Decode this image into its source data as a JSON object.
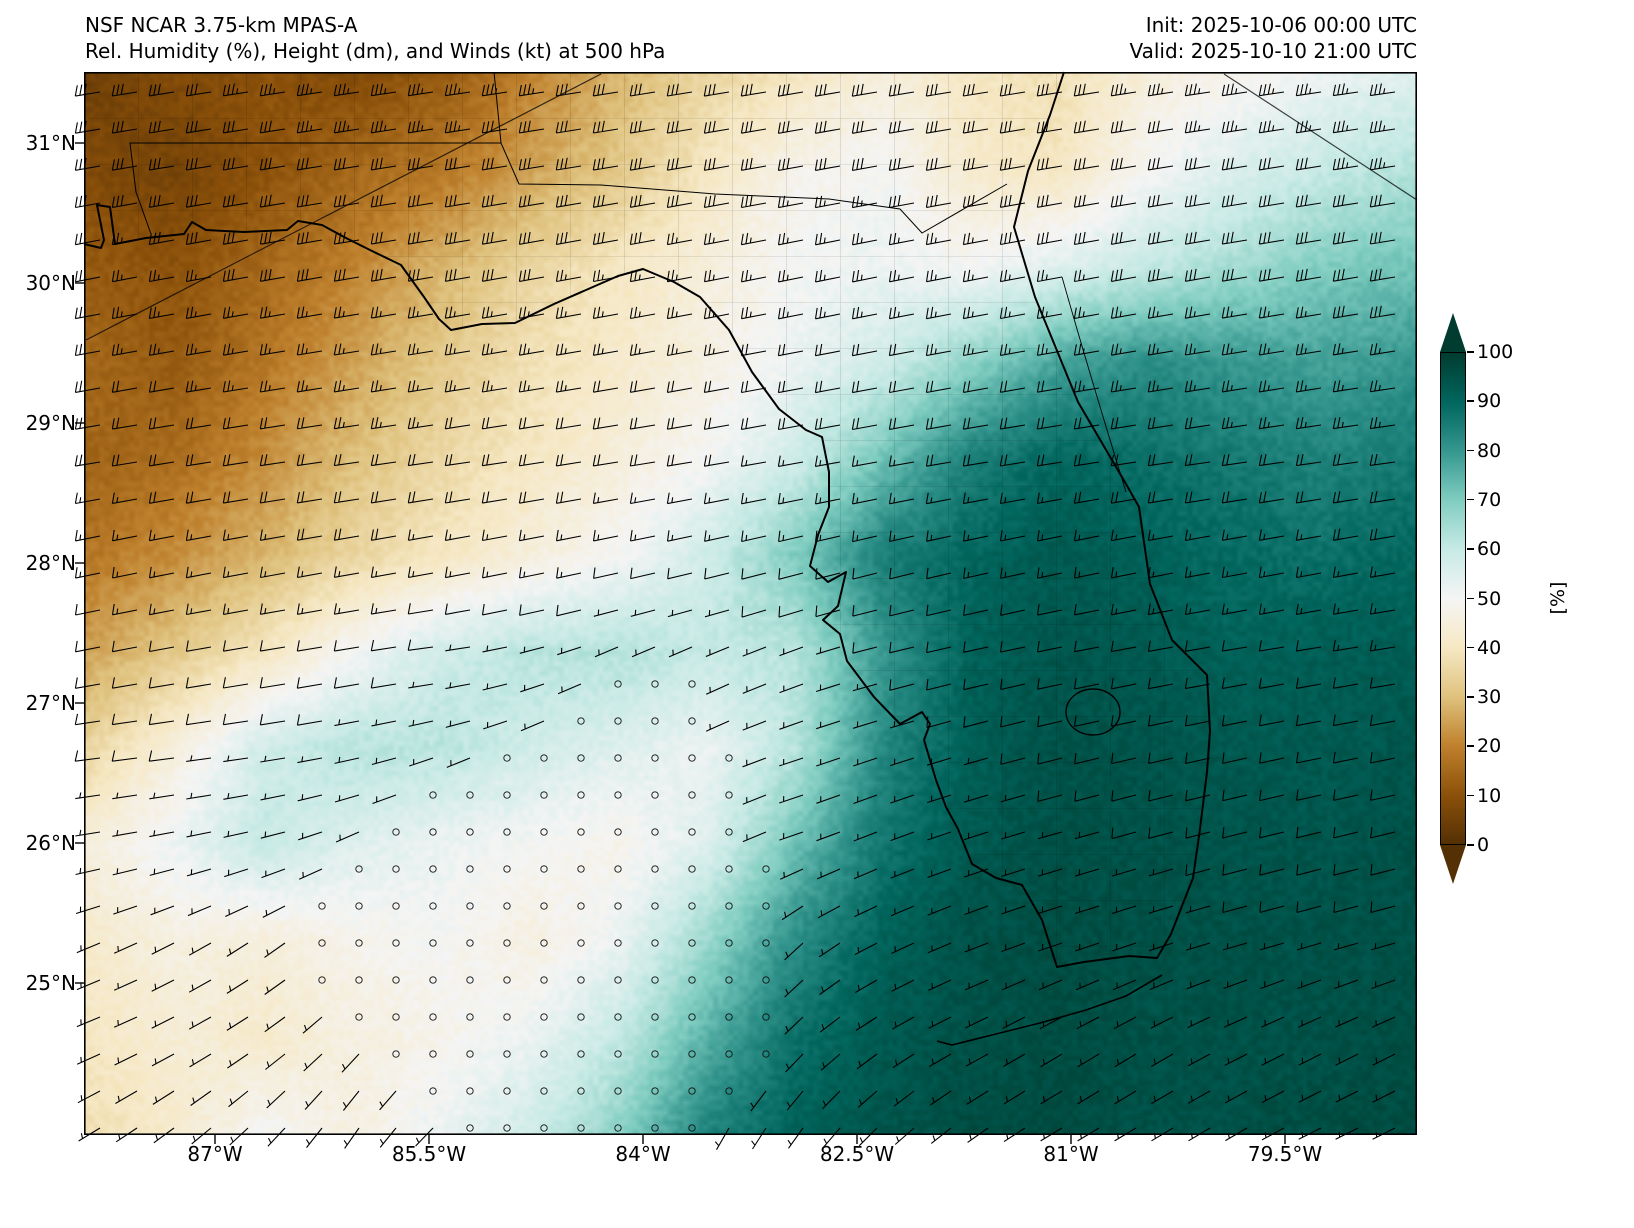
{
  "header": {
    "model": "NSF NCAR 3.75-km MPAS-A",
    "subtitle": "Rel. Humidity (%), Height (dm), and Winds (kt) at 500 hPa",
    "init": "Init: 2025-10-06 00:00 UTC",
    "valid": "Valid: 2025-10-10 21:00 UTC"
  },
  "axes": {
    "lat_labels": [
      "31°N",
      "30°N",
      "29°N",
      "28°N",
      "27°N",
      "26°N",
      "25°N"
    ],
    "lon_labels": [
      "87°W",
      "85.5°W",
      "84°W",
      "82.5°W",
      "81°W",
      "79.5°W"
    ]
  },
  "colorbar": {
    "ticks": [
      "100",
      "90",
      "80",
      "70",
      "60",
      "50",
      "40",
      "30",
      "20",
      "10",
      "0"
    ],
    "label": "[%]"
  },
  "chart_data": {
    "type": "heatmap",
    "title": "NSF NCAR 3.75-km MPAS-A  Rel. Humidity (%), Height (dm), and Winds (kt) at 500 hPa",
    "field": "relative_humidity_500hPa_percent",
    "lon_range": [
      -87.92,
      -78.55
    ],
    "lat_range": [
      23.92,
      31.51
    ],
    "value_range": [
      0,
      100
    ],
    "colormap": [
      "#543005",
      "#8c510a",
      "#bf812d",
      "#dfc27d",
      "#f6e8c3",
      "#f5f5f5",
      "#c7eae5",
      "#80cdc1",
      "#35978f",
      "#01665e",
      "#003c30"
    ],
    "humidity_grid": [
      [
        5,
        8,
        10,
        8,
        12,
        20,
        28,
        35,
        40,
        45,
        40,
        38,
        45,
        48,
        52,
        55
      ],
      [
        8,
        6,
        10,
        15,
        18,
        25,
        32,
        40,
        48,
        50,
        42,
        40,
        50,
        56,
        60,
        63
      ],
      [
        12,
        10,
        15,
        20,
        28,
        35,
        40,
        45,
        50,
        52,
        50,
        55,
        60,
        65,
        70,
        72
      ],
      [
        15,
        12,
        18,
        25,
        32,
        38,
        42,
        46,
        52,
        58,
        68,
        78,
        82,
        80,
        78,
        80
      ],
      [
        14,
        16,
        22,
        30,
        36,
        40,
        45,
        50,
        58,
        72,
        85,
        90,
        88,
        86,
        84,
        86
      ],
      [
        18,
        22,
        28,
        35,
        40,
        45,
        50,
        58,
        70,
        85,
        90,
        93,
        91,
        89,
        88,
        90
      ],
      [
        25,
        32,
        40,
        50,
        58,
        62,
        63,
        60,
        62,
        80,
        91,
        94,
        93,
        91,
        92,
        92
      ],
      [
        35,
        45,
        58,
        62,
        62,
        58,
        55,
        52,
        62,
        83,
        92,
        95,
        94,
        93,
        93,
        94
      ],
      [
        45,
        52,
        60,
        55,
        52,
        50,
        48,
        55,
        72,
        87,
        93,
        95,
        95,
        94,
        94,
        95
      ],
      [
        42,
        46,
        45,
        48,
        50,
        46,
        52,
        66,
        82,
        91,
        95,
        96,
        95,
        95,
        95,
        95
      ],
      [
        40,
        44,
        42,
        46,
        48,
        52,
        60,
        75,
        88,
        93,
        95,
        96,
        95,
        95,
        95,
        96
      ],
      [
        38,
        42,
        50,
        46,
        52,
        58,
        68,
        84,
        91,
        94,
        96,
        96,
        95,
        95,
        96,
        96
      ]
    ],
    "wind_units": "kt",
    "wind_u": [
      [
        30,
        32,
        33,
        34,
        34,
        33,
        32,
        31,
        30,
        30,
        31,
        32,
        33,
        34,
        34,
        35
      ],
      [
        28,
        30,
        31,
        32,
        32,
        31,
        30,
        29,
        28,
        28,
        29,
        30,
        31,
        32,
        32,
        33
      ],
      [
        25,
        27,
        28,
        29,
        29,
        28,
        27,
        26,
        25,
        25,
        26,
        27,
        28,
        29,
        29,
        30
      ],
      [
        22,
        23,
        24,
        25,
        25,
        24,
        23,
        22,
        21,
        21,
        22,
        23,
        24,
        25,
        25,
        26
      ],
      [
        18,
        19,
        20,
        21,
        21,
        20,
        19,
        18,
        17,
        17,
        18,
        19,
        20,
        21,
        21,
        22
      ],
      [
        14,
        15,
        16,
        17,
        16,
        15,
        14,
        13,
        12,
        12,
        13,
        14,
        15,
        16,
        16,
        17
      ],
      [
        10,
        11,
        12,
        12,
        8,
        4,
        2,
        2,
        5,
        8,
        9,
        10,
        11,
        12,
        12,
        13
      ],
      [
        8,
        8,
        7,
        5,
        3,
        2,
        1,
        2,
        3,
        6,
        7,
        8,
        9,
        9,
        10,
        10
      ],
      [
        6,
        5,
        4,
        2,
        1,
        0,
        0,
        1,
        3,
        5,
        6,
        7,
        7,
        8,
        8,
        8
      ],
      [
        5,
        4,
        3,
        1,
        0,
        0,
        0,
        1,
        2,
        4,
        5,
        6,
        6,
        7,
        7,
        7
      ],
      [
        5,
        4,
        3,
        2,
        1,
        0,
        0,
        1,
        2,
        3,
        4,
        5,
        5,
        6,
        6,
        6
      ],
      [
        5,
        4,
        3,
        2,
        2,
        1,
        1,
        1,
        2,
        3,
        4,
        5,
        5,
        5,
        6,
        6
      ]
    ],
    "wind_v": [
      [
        5,
        5,
        5,
        5,
        5,
        5,
        5,
        5,
        5,
        5,
        5,
        5,
        5,
        5,
        5,
        5
      ],
      [
        5,
        5,
        5,
        5,
        5,
        5,
        5,
        5,
        5,
        5,
        5,
        5,
        5,
        5,
        5,
        5
      ],
      [
        5,
        5,
        5,
        5,
        5,
        5,
        5,
        5,
        5,
        5,
        5,
        5,
        5,
        5,
        5,
        5
      ],
      [
        4,
        4,
        4,
        4,
        4,
        4,
        4,
        4,
        4,
        4,
        4,
        4,
        4,
        4,
        4,
        4
      ],
      [
        3,
        3,
        3,
        3,
        3,
        3,
        3,
        3,
        3,
        3,
        3,
        3,
        3,
        3,
        3,
        3
      ],
      [
        3,
        3,
        3,
        3,
        3,
        3,
        3,
        3,
        3,
        3,
        3,
        3,
        3,
        3,
        3,
        3
      ],
      [
        2,
        2,
        2,
        2,
        1,
        1,
        1,
        1,
        2,
        2,
        2,
        2,
        2,
        2,
        2,
        2
      ],
      [
        1,
        1,
        1,
        1,
        1,
        1,
        1,
        1,
        1,
        2,
        2,
        2,
        2,
        2,
        2,
        2
      ],
      [
        1,
        1,
        1,
        1,
        1,
        1,
        1,
        1,
        1,
        2,
        2,
        2,
        2,
        2,
        2,
        2
      ],
      [
        2,
        2,
        2,
        1,
        1,
        1,
        1,
        1,
        2,
        2,
        2,
        2,
        2,
        2,
        2,
        2
      ],
      [
        2,
        2,
        2,
        2,
        1,
        1,
        1,
        1,
        2,
        2,
        2,
        3,
        3,
        3,
        3,
        3
      ],
      [
        3,
        3,
        3,
        3,
        2,
        2,
        2,
        2,
        3,
        3,
        3,
        3,
        3,
        3,
        3,
        3
      ]
    ],
    "legend_position": "right",
    "grid": false
  }
}
